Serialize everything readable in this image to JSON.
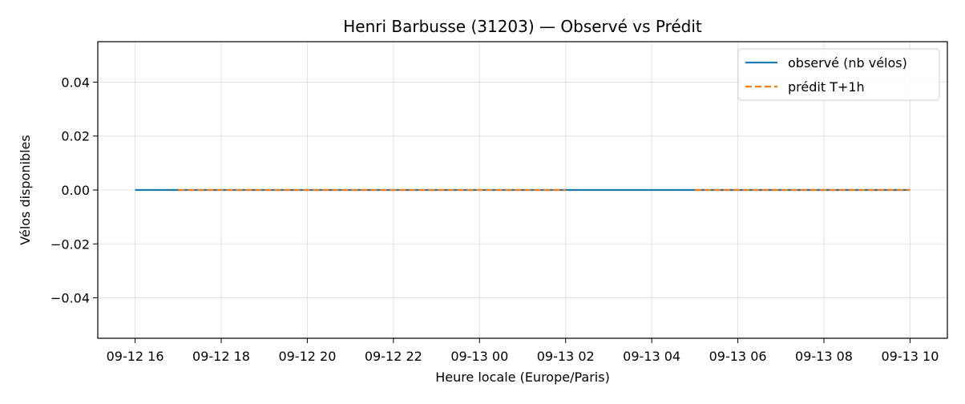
{
  "chart_data": {
    "type": "line",
    "title": "Henri Barbusse (31203) — Observé vs Prédit",
    "xlabel": "Heure locale (Europe/Paris)",
    "ylabel": "Vélos disponibles",
    "x_tick_labels": [
      "09-12 16",
      "09-12 18",
      "09-12 20",
      "09-12 22",
      "09-13 00",
      "09-13 02",
      "09-13 04",
      "09-13 06",
      "09-13 08",
      "09-13 10"
    ],
    "xlim": [
      "2025-09-12T15:08",
      "2025-09-13T10:52"
    ],
    "ylim": [
      -0.055,
      0.055
    ],
    "y_ticks": [
      0.04,
      0.02,
      0.0,
      -0.02,
      -0.04
    ],
    "y_tick_labels": [
      "0.04",
      "0.02",
      "0.00",
      "−0.02",
      "−0.04"
    ],
    "grid": true,
    "legend_position": "top-right",
    "series": [
      {
        "name": "observé (nb vélos)",
        "style": "solid",
        "color": "#1f77b4",
        "x": [
          "2025-09-12T16:00",
          "2025-09-13T10:00"
        ],
        "y": [
          0,
          0
        ]
      },
      {
        "name": "prédit T+1h",
        "style": "dashed",
        "color": "#ff7f0e",
        "segments": [
          {
            "x": [
              "2025-09-12T17:00",
              "2025-09-13T02:00"
            ],
            "y": [
              0,
              0
            ]
          },
          {
            "x": [
              "2025-09-13T05:00",
              "2025-09-13T10:00"
            ],
            "y": [
              0,
              0
            ]
          }
        ]
      }
    ]
  }
}
